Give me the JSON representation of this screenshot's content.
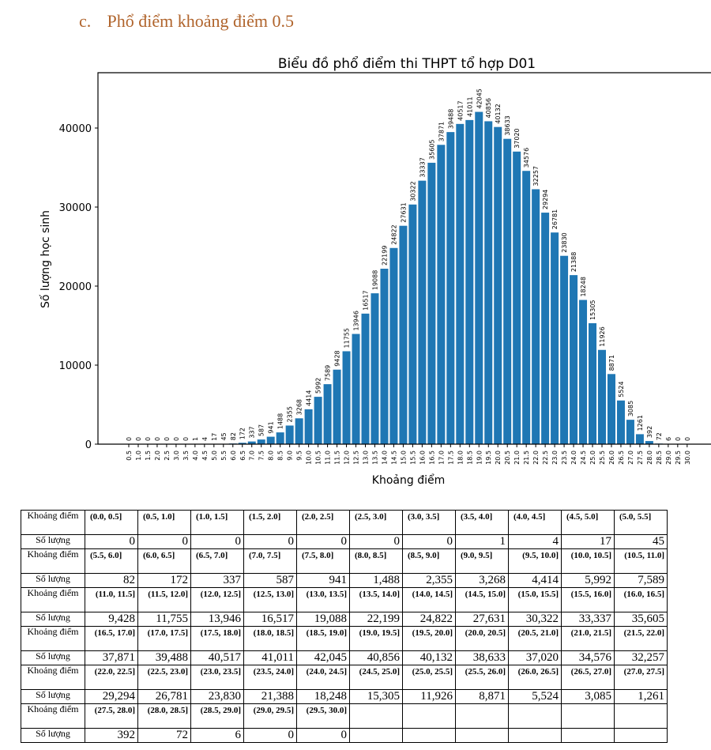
{
  "heading": {
    "label": "c.",
    "text": "Phổ điểm khoảng điểm 0.5"
  },
  "chart_data": {
    "type": "bar",
    "title": "Biểu đồ phổ điểm thi THPT tổ hợp D01",
    "xlabel": "Khoảng điểm",
    "ylabel": "Số lượng học sinh",
    "ylim": [
      0,
      47000
    ],
    "yticks": [
      0,
      10000,
      20000,
      30000,
      40000
    ],
    "color": "#1f77b4",
    "categories": [
      "0.5",
      "1.0",
      "1.5",
      "2.0",
      "2.5",
      "3.0",
      "3.5",
      "4.0",
      "4.5",
      "5.0",
      "5.5",
      "6.0",
      "6.5",
      "7.0",
      "7.5",
      "8.0",
      "8.5",
      "9.0",
      "9.5",
      "10.0",
      "10.5",
      "11.0",
      "11.5",
      "12.0",
      "12.5",
      "13.0",
      "13.5",
      "14.0",
      "14.5",
      "15.0",
      "15.5",
      "16.0",
      "16.5",
      "17.0",
      "17.5",
      "18.0",
      "18.5",
      "19.0",
      "19.5",
      "20.0",
      "20.5",
      "21.0",
      "21.5",
      "22.0",
      "22.5",
      "23.0",
      "23.5",
      "24.0",
      "24.5",
      "25.0",
      "25.5",
      "26.0",
      "26.5",
      "27.0",
      "27.5",
      "28.0",
      "28.5",
      "29.0",
      "29.5",
      "30.0"
    ],
    "values": [
      0,
      0,
      0,
      0,
      0,
      0,
      0,
      1,
      4,
      17,
      45,
      82,
      172,
      337,
      587,
      941,
      1488,
      2355,
      3268,
      4414,
      5992,
      7589,
      9428,
      11755,
      13946,
      16517,
      19088,
      22199,
      24822,
      27631,
      30322,
      33337,
      35605,
      37871,
      39488,
      40517,
      41011,
      42045,
      40856,
      40132,
      38633,
      37020,
      34576,
      32257,
      29294,
      26781,
      23830,
      21388,
      18248,
      15305,
      11926,
      8871,
      5524,
      3085,
      1261,
      392,
      72,
      6,
      0,
      0
    ]
  },
  "table": {
    "label_header": "Khoảng điểm",
    "count_header": "Số lượng",
    "rows": [
      {
        "labels": [
          "(0.0, 0.5]",
          "(0.5, 1.0]",
          "(1.0, 1.5]",
          "(1.5, 2.0]",
          "(2.0, 2.5]",
          "(2.5, 3.0]",
          "(3.0, 3.5]",
          "(3.5, 4.0]",
          "(4.0, 4.5]",
          "(4.5, 5.0]",
          "(5.0, 5.5]"
        ],
        "counts": [
          "0",
          "0",
          "0",
          "0",
          "0",
          "0",
          "0",
          "1",
          "4",
          "17",
          "45"
        ]
      },
      {
        "labels": [
          "(5.5, 6.0]",
          "(6.0, 6.5]",
          "(6.5, 7.0]",
          "(7.0, 7.5]",
          "(7.5, 8.0]",
          "(8.0, 8.5]",
          "(8.5, 9.0]",
          "(9.0, 9.5]",
          "(9.5, 10.0]",
          "(10.0, 10.5]",
          "(10.5, 11.0]"
        ],
        "counts": [
          "82",
          "172",
          "337",
          "587",
          "941",
          "1,488",
          "2,355",
          "3,268",
          "4,414",
          "5,992",
          "7,589"
        ]
      },
      {
        "labels": [
          "(11.0, 11.5]",
          "(11.5, 12.0]",
          "(12.0, 12.5]",
          "(12.5, 13.0]",
          "(13.0, 13.5]",
          "(13.5, 14.0]",
          "(14.0, 14.5]",
          "(14.5, 15.0]",
          "(15.0, 15.5]",
          "(15.5, 16.0]",
          "(16.0, 16.5]"
        ],
        "counts": [
          "9,428",
          "11,755",
          "13,946",
          "16,517",
          "19,088",
          "22,199",
          "24,822",
          "27,631",
          "30,322",
          "33,337",
          "35,605"
        ]
      },
      {
        "labels": [
          "(16.5, 17.0]",
          "(17.0, 17.5]",
          "(17.5, 18.0]",
          "(18.0, 18.5]",
          "(18.5, 19.0]",
          "(19.0, 19.5]",
          "(19.5, 20.0]",
          "(20.0, 20.5]",
          "(20.5, 21.0]",
          "(21.0, 21.5]",
          "(21.5, 22.0]"
        ],
        "counts": [
          "37,871",
          "39,488",
          "40,517",
          "41,011",
          "42,045",
          "40,856",
          "40,132",
          "38,633",
          "37,020",
          "34,576",
          "32,257"
        ]
      },
      {
        "labels": [
          "(22.0, 22.5]",
          "(22.5, 23.0]",
          "(23.0, 23.5]",
          "(23.5, 24.0]",
          "(24.0, 24.5]",
          "(24.5, 25.0]",
          "(25.0, 25.5]",
          "(25.5, 26.0]",
          "(26.0, 26.5]",
          "(26.5, 27.0]",
          "(27.0, 27.5]"
        ],
        "counts": [
          "29,294",
          "26,781",
          "23,830",
          "21,388",
          "18,248",
          "15,305",
          "11,926",
          "8,871",
          "5,524",
          "3,085",
          "1,261"
        ]
      },
      {
        "labels": [
          "(27.5, 28.0]",
          "(28.0, 28.5]",
          "(28.5, 29.0]",
          "(29.0, 29.5]",
          "(29.5, 30.0]",
          "",
          "",
          "",
          "",
          "",
          ""
        ],
        "counts": [
          "392",
          "72",
          "6",
          "0",
          "0",
          "",
          "",
          "",
          "",
          "",
          ""
        ]
      }
    ]
  }
}
